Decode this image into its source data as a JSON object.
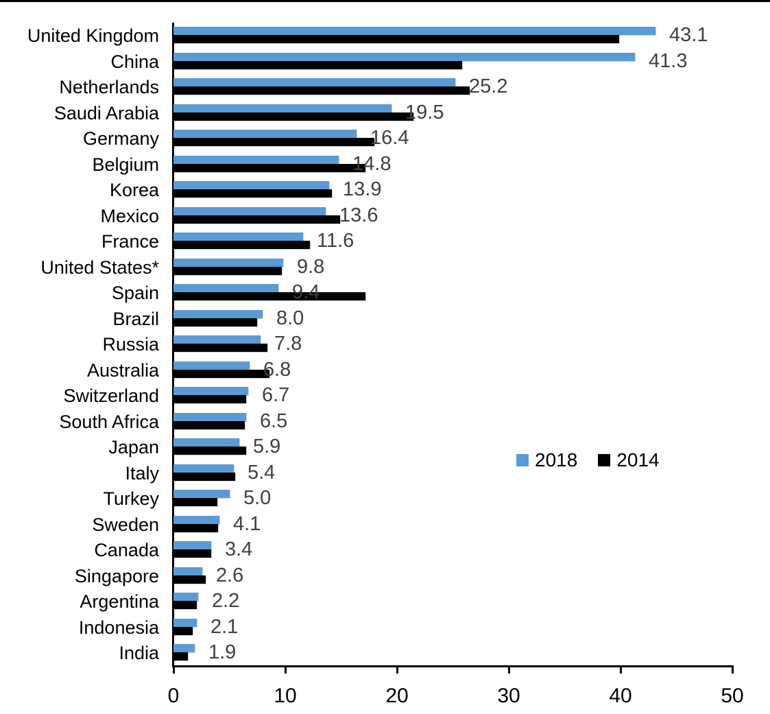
{
  "chart_data": {
    "type": "bar",
    "orientation": "horizontal",
    "title": "",
    "xlabel": "",
    "ylabel": "",
    "xlim": [
      0,
      50
    ],
    "x_ticks": [
      0,
      10,
      20,
      30,
      40,
      50
    ],
    "grid": false,
    "legend_position": "middle-right",
    "categories": [
      "United Kingdom",
      "China",
      "Netherlands",
      "Saudi Arabia",
      "Germany",
      "Belgium",
      "Korea",
      "Mexico",
      "France",
      "United States*",
      "Spain",
      "Brazil",
      "Russia",
      "Australia",
      "Switzerland",
      "South Africa",
      "Japan",
      "Italy",
      "Turkey",
      "Sweden",
      "Canada",
      "Singapore",
      "Argentina",
      "Indonesia",
      "India"
    ],
    "series": [
      {
        "name": "2018",
        "color": "#5B9BD5",
        "values": [
          43.1,
          41.3,
          25.2,
          19.5,
          16.4,
          14.8,
          13.9,
          13.6,
          11.6,
          9.8,
          9.4,
          8.0,
          7.8,
          6.8,
          6.7,
          6.5,
          5.9,
          5.4,
          5.0,
          4.1,
          3.4,
          2.6,
          2.2,
          2.1,
          1.9
        ]
      },
      {
        "name": "2014",
        "color": "#000000",
        "values": [
          39.9,
          25.8,
          26.5,
          21.5,
          18.0,
          17.2,
          14.2,
          14.9,
          12.2,
          9.7,
          17.2,
          7.5,
          8.4,
          8.6,
          6.5,
          6.4,
          6.5,
          5.5,
          3.9,
          4.0,
          3.4,
          2.9,
          2.1,
          1.7,
          1.3
        ]
      }
    ],
    "data_labels": {
      "series": "2018",
      "values": [
        "43.1",
        "41.3",
        "25.2",
        "19.5",
        "16.4",
        "14.8",
        "13.9",
        "13.6",
        "11.6",
        "9.8",
        "9.4",
        "8.0",
        "7.8",
        "6.8",
        "6.7",
        "6.5",
        "5.9",
        "5.4",
        "5.0",
        "4.1",
        "3.4",
        "2.6",
        "2.2",
        "2.1",
        "1.9"
      ],
      "color": "#404040"
    },
    "legend": {
      "entries": [
        {
          "label": "2018",
          "color": "#5B9BD5"
        },
        {
          "label": "2014",
          "color": "#000000"
        }
      ]
    }
  }
}
